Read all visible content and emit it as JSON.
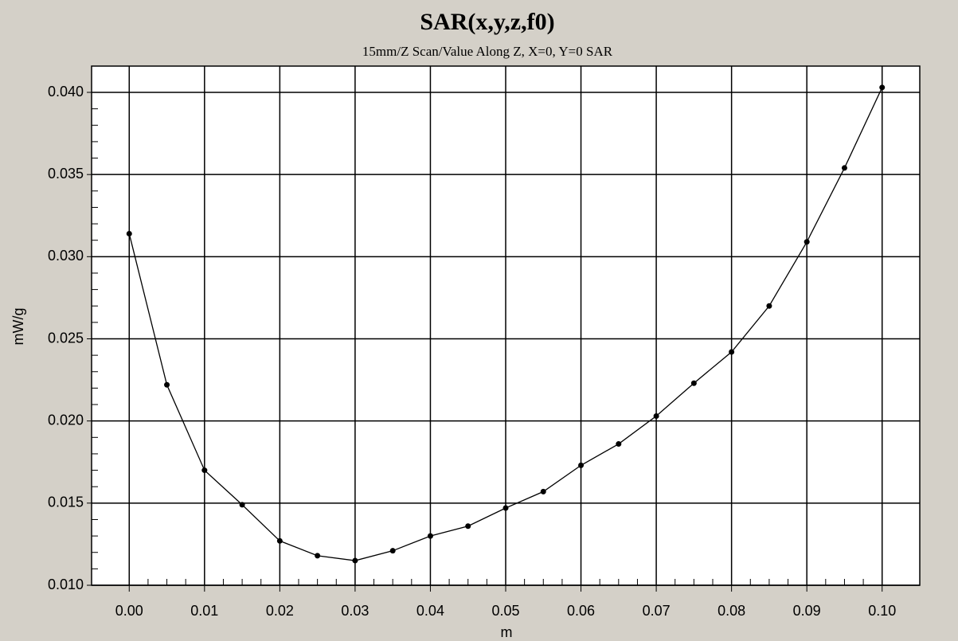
{
  "chart_data": {
    "type": "line",
    "title": "SAR(x,y,z,f0)",
    "subtitle": "15mm/Z Scan/Value Along Z, X=0, Y=0 SAR",
    "x_label": "m",
    "y_label": "mW/g",
    "x": [
      0,
      0.005,
      0.01,
      0.015,
      0.02,
      0.025,
      0.03,
      0.035,
      0.04,
      0.045,
      0.05,
      0.055,
      0.06,
      0.065,
      0.07,
      0.075,
      0.08,
      0.085,
      0.09,
      0.095,
      0.1
    ],
    "series": [
      {
        "name": "SAR",
        "color": "#000000",
        "values": [
          0.0314,
          0.0222,
          0.017,
          0.0149,
          0.0127,
          0.0118,
          0.0115,
          0.0121,
          0.013,
          0.0136,
          0.0147,
          0.0157,
          0.0173,
          0.0186,
          0.0203,
          0.0223,
          0.0242,
          0.027,
          0.0309,
          0.0354,
          0.0403
        ]
      }
    ],
    "xlim": [
      -0.005,
      0.105
    ],
    "ylim": [
      0.01,
      0.0416
    ],
    "xticks": [
      {
        "value": 0,
        "label": "0.00"
      },
      {
        "value": 0.01,
        "label": "0.01"
      },
      {
        "value": 0.02,
        "label": "0.02"
      },
      {
        "value": 0.03,
        "label": "0.03"
      },
      {
        "value": 0.04,
        "label": "0.04"
      },
      {
        "value": 0.05,
        "label": "0.05"
      },
      {
        "value": 0.06,
        "label": "0.06"
      },
      {
        "value": 0.07,
        "label": "0.07"
      },
      {
        "value": 0.08,
        "label": "0.08"
      },
      {
        "value": 0.09,
        "label": "0.09"
      },
      {
        "value": 0.1,
        "label": "0.10"
      }
    ],
    "yticks": [
      {
        "value": 0.01,
        "label": "0.010"
      },
      {
        "value": 0.015,
        "label": "0.015"
      },
      {
        "value": 0.02,
        "label": "0.020"
      },
      {
        "value": 0.025,
        "label": "0.025"
      },
      {
        "value": 0.03,
        "label": "0.030"
      },
      {
        "value": 0.035,
        "label": "0.035"
      },
      {
        "value": 0.04,
        "label": "0.040"
      }
    ],
    "grid": true
  }
}
